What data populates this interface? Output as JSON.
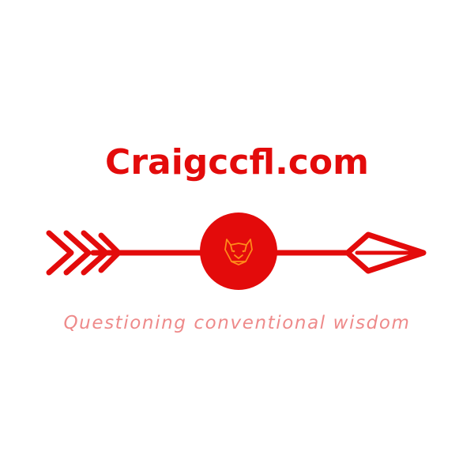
{
  "logo": {
    "site_name": "Craigccfl.com",
    "tagline": "Questioning conventional wisdom",
    "emblem_icon": "fox-head-icon",
    "arrow_icon": "arrow-icon",
    "colors": {
      "brand_red": "#e30b0b",
      "tagline_pink": "#ee8a8a",
      "fox_orange": "#ff8a1a",
      "background": "#ffffff"
    }
  }
}
